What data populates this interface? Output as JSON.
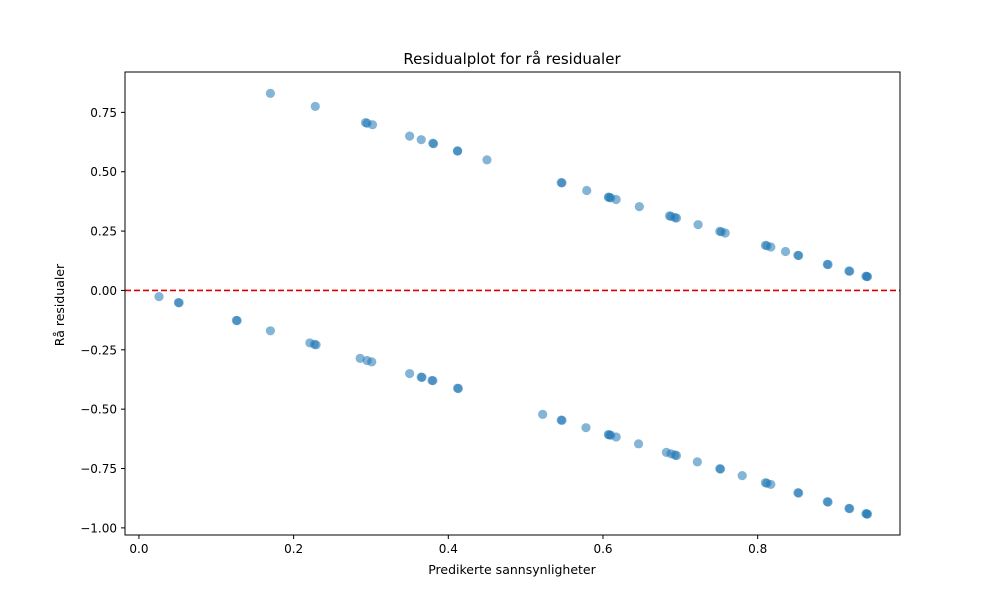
{
  "chart_data": {
    "type": "scatter",
    "title": "Residualplot for rå residualer",
    "xlabel": "Predikerte sannsynligheter",
    "ylabel": "Rå residualer",
    "xlim": [
      -0.018,
      0.984
    ],
    "ylim": [
      -1.03,
      0.92
    ],
    "xticks": [
      0.0,
      0.2,
      0.4,
      0.6,
      0.8
    ],
    "xtick_labels": [
      "0.0",
      "0.2",
      "0.4",
      "0.6",
      "0.8"
    ],
    "yticks": [
      -1.0,
      -0.75,
      -0.5,
      -0.25,
      0.0,
      0.25,
      0.5,
      0.75
    ],
    "ytick_labels": [
      "−1.00",
      "−0.75",
      "−0.50",
      "−0.25",
      "0.00",
      "0.25",
      "0.50",
      "0.75"
    ],
    "grid": false,
    "reference_line": {
      "y": 0.0,
      "style": "dashed",
      "color": "#e00000"
    },
    "point_color": "#1f77b4",
    "point_alpha": 0.55,
    "points": [
      [
        0.17,
        0.83
      ],
      [
        0.228,
        0.775
      ],
      [
        0.293,
        0.707
      ],
      [
        0.295,
        0.704
      ],
      [
        0.302,
        0.698
      ],
      [
        0.35,
        0.65
      ],
      [
        0.365,
        0.635
      ],
      [
        0.38,
        0.62
      ],
      [
        0.381,
        0.618
      ],
      [
        0.412,
        0.588
      ],
      [
        0.412,
        0.587
      ],
      [
        0.45,
        0.55
      ],
      [
        0.546,
        0.454
      ],
      [
        0.547,
        0.453
      ],
      [
        0.579,
        0.421
      ],
      [
        0.607,
        0.393
      ],
      [
        0.608,
        0.392
      ],
      [
        0.61,
        0.39
      ],
      [
        0.617,
        0.383
      ],
      [
        0.647,
        0.353
      ],
      [
        0.686,
        0.314
      ],
      [
        0.688,
        0.312
      ],
      [
        0.693,
        0.307
      ],
      [
        0.695,
        0.305
      ],
      [
        0.723,
        0.277
      ],
      [
        0.751,
        0.249
      ],
      [
        0.753,
        0.247
      ],
      [
        0.758,
        0.242
      ],
      [
        0.81,
        0.19
      ],
      [
        0.812,
        0.188
      ],
      [
        0.817,
        0.183
      ],
      [
        0.836,
        0.164
      ],
      [
        0.852,
        0.148
      ],
      [
        0.853,
        0.147
      ],
      [
        0.89,
        0.11
      ],
      [
        0.891,
        0.109
      ],
      [
        0.918,
        0.082
      ],
      [
        0.919,
        0.081
      ],
      [
        0.94,
        0.06
      ],
      [
        0.941,
        0.059
      ],
      [
        0.942,
        0.058
      ],
      [
        0.026,
        -0.026
      ],
      [
        0.051,
        -0.051
      ],
      [
        0.052,
        -0.052
      ],
      [
        0.126,
        -0.126
      ],
      [
        0.127,
        -0.127
      ],
      [
        0.17,
        -0.17
      ],
      [
        0.221,
        -0.221
      ],
      [
        0.227,
        -0.227
      ],
      [
        0.229,
        -0.229
      ],
      [
        0.286,
        -0.286
      ],
      [
        0.295,
        -0.295
      ],
      [
        0.301,
        -0.301
      ],
      [
        0.35,
        -0.35
      ],
      [
        0.365,
        -0.365
      ],
      [
        0.366,
        -0.366
      ],
      [
        0.379,
        -0.379
      ],
      [
        0.38,
        -0.38
      ],
      [
        0.412,
        -0.412
      ],
      [
        0.413,
        -0.413
      ],
      [
        0.522,
        -0.522
      ],
      [
        0.546,
        -0.546
      ],
      [
        0.547,
        -0.547
      ],
      [
        0.578,
        -0.578
      ],
      [
        0.607,
        -0.607
      ],
      [
        0.608,
        -0.608
      ],
      [
        0.61,
        -0.61
      ],
      [
        0.617,
        -0.617
      ],
      [
        0.646,
        -0.646
      ],
      [
        0.682,
        -0.682
      ],
      [
        0.688,
        -0.688
      ],
      [
        0.693,
        -0.693
      ],
      [
        0.695,
        -0.695
      ],
      [
        0.722,
        -0.722
      ],
      [
        0.751,
        -0.751
      ],
      [
        0.752,
        -0.752
      ],
      [
        0.78,
        -0.78
      ],
      [
        0.81,
        -0.81
      ],
      [
        0.812,
        -0.812
      ],
      [
        0.817,
        -0.817
      ],
      [
        0.852,
        -0.852
      ],
      [
        0.853,
        -0.853
      ],
      [
        0.89,
        -0.89
      ],
      [
        0.891,
        -0.891
      ],
      [
        0.918,
        -0.918
      ],
      [
        0.919,
        -0.919
      ],
      [
        0.94,
        -0.94
      ],
      [
        0.941,
        -0.941
      ],
      [
        0.942,
        -0.942
      ]
    ]
  }
}
